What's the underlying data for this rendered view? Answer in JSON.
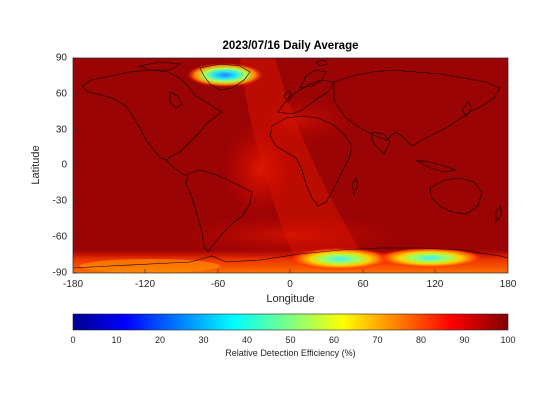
{
  "title": "2023/07/16 Daily Average",
  "xlabel": "Longitude",
  "ylabel": "Latitude",
  "x_ticks": [
    "-180",
    "-120",
    "-60",
    "0",
    "60",
    "120",
    "180"
  ],
  "y_ticks": [
    "90",
    "60",
    "30",
    "0",
    "-30",
    "-60",
    "-90"
  ],
  "colorbar": {
    "ticks": [
      "0",
      "10",
      "20",
      "30",
      "40",
      "50",
      "60",
      "70",
      "80",
      "90",
      "100"
    ],
    "label": "Relative Detection Efficiency (%)",
    "colormap": "jet",
    "range": [
      0,
      100
    ]
  },
  "chart_data": {
    "type": "heatmap",
    "xlim": [
      -180,
      180
    ],
    "ylim": [
      -90,
      90
    ],
    "background_value": 95,
    "regions": [
      {
        "lon": [
          -75,
          -15
        ],
        "lat": [
          70,
          85
        ],
        "value": 45
      },
      {
        "lon": [
          -30,
          0
        ],
        "lat": [
          10,
          25
        ],
        "value": 88
      },
      {
        "lon": [
          -10,
          40
        ],
        "lat": [
          -85,
          -70
        ],
        "value": 65
      },
      {
        "lon": [
          30,
          70
        ],
        "lat": [
          -82,
          -72
        ],
        "value": 40
      },
      {
        "lon": [
          75,
          155
        ],
        "lat": [
          -80,
          -68
        ],
        "value": 50
      }
    ]
  },
  "colors": {
    "ocean_base": "#990000",
    "land_outline": "#000000"
  }
}
